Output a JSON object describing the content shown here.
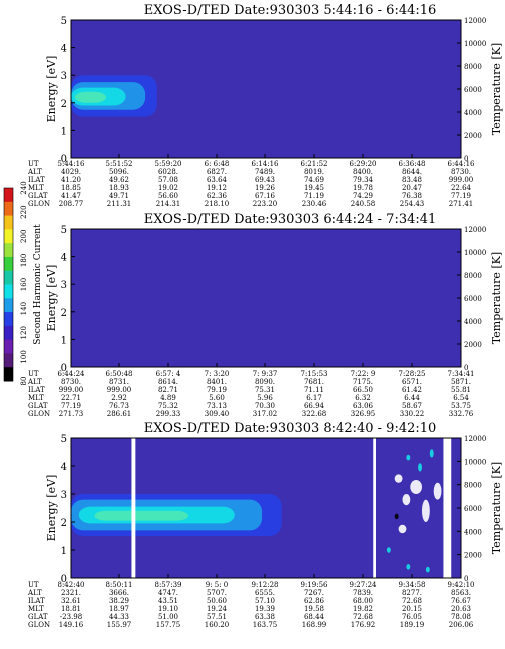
{
  "colorbar": {
    "label": "Second Harmonic Current",
    "ticks": [
      "240",
      "220",
      "200",
      "180",
      "160",
      "140",
      "120",
      "100",
      "80"
    ],
    "colors": [
      "#d4141b",
      "#ec6a18",
      "#f4c21a",
      "#f1f327",
      "#9ce23c",
      "#37d03c",
      "#1ac7a6",
      "#12e0e6",
      "#1f9ce9",
      "#2640e6",
      "#3a1fc4",
      "#6a1fb0",
      "#541b78",
      "#000000"
    ]
  },
  "chart_data": [
    {
      "type": "heatmap",
      "title": "EXOS-D/TED   Date:930303  5:44:16 - 6:44:16",
      "ylabel": "Energy [eV]",
      "y2label": "Temperature [K]",
      "ylim": [
        0,
        5
      ],
      "y2lim": [
        0,
        12000
      ],
      "yticks": [
        "0",
        "1",
        "2",
        "3",
        "4",
        "5"
      ],
      "y2ticks": [
        "0",
        "2000",
        "4000",
        "6000",
        "8000",
        "10000",
        "12000"
      ],
      "background_color": "#3d2fb0",
      "gaps": [],
      "blobs": [
        {
          "x0": 0.0,
          "x1": 0.22,
          "y0": 1.5,
          "y1": 3.0,
          "color": "#2640e6"
        },
        {
          "x0": 0.0,
          "x1": 0.19,
          "y0": 1.75,
          "y1": 2.75,
          "color": "#1f9ce9"
        },
        {
          "x0": 0.0,
          "x1": 0.14,
          "y0": 1.9,
          "y1": 2.55,
          "color": "#12e0e6"
        },
        {
          "x0": 0.01,
          "x1": 0.09,
          "y0": 2.0,
          "y1": 2.4,
          "color": "#4fe9b4"
        }
      ],
      "ephemeris": {
        "labels": [
          "UT",
          "ALT",
          "ILAT",
          "MLT",
          "GLAT",
          "GLON"
        ],
        "rows": [
          [
            "5:44:16",
            "5:51:52",
            "5:59:20",
            "6: 6:48",
            "6:14:16",
            "6:21:52",
            "6:29:20",
            "6:36:48",
            "6:44:16"
          ],
          [
            "4029.",
            "5096.",
            "6028.",
            "6827.",
            "7489.",
            "8019.",
            "8400.",
            "8644.",
            "8730."
          ],
          [
            "41.20",
            "49.62",
            "57.08",
            "63.64",
            "69.43",
            "74.69",
            "79.34",
            "83.48",
            "999.00"
          ],
          [
            "18.85",
            "18.93",
            "19.02",
            "19.12",
            "19.26",
            "19.45",
            "19.78",
            "20.47",
            "22.64"
          ],
          [
            "41.47",
            "49.71",
            "56.60",
            "62.36",
            "67.16",
            "71.19",
            "74.29",
            "76.38",
            "77.19"
          ],
          [
            "208.77",
            "211.31",
            "214.31",
            "218.10",
            "223.20",
            "230.46",
            "240.58",
            "254.43",
            "271.41"
          ]
        ]
      }
    },
    {
      "type": "heatmap",
      "title": "EXOS-D/TED   Date:930303  6:44:24 - 7:34:41",
      "ylabel": "Energy [eV]",
      "y2label": "Temperature [K]",
      "ylim": [
        0,
        5
      ],
      "y2lim": [
        0,
        12000
      ],
      "yticks": [
        "0",
        "1",
        "2",
        "3",
        "4",
        "5"
      ],
      "y2ticks": [
        "0",
        "2000",
        "4000",
        "6000",
        "8000",
        "10000",
        "12000"
      ],
      "background_color": "#3d2fb0",
      "gaps": [],
      "blobs": [],
      "ephemeris": {
        "labels": [
          "UT",
          "ALT",
          "ILAT",
          "MLT",
          "GLAT",
          "GLON"
        ],
        "rows": [
          [
            "6:44:24",
            "6:50:48",
            "6:57: 4",
            "7: 3:20",
            "7: 9:37",
            "7:15:53",
            "7:22: 9",
            "7:28:25",
            "7:34:41"
          ],
          [
            "8730.",
            "8731.",
            "8614.",
            "8401.",
            "8090.",
            "7681.",
            "7175.",
            "6571.",
            "5871."
          ],
          [
            "999.00",
            "999.00",
            "82.71",
            "79.19",
            "75.31",
            "71.11",
            "66.50",
            "61.42",
            "55.81"
          ],
          [
            "22.71",
            "2.92",
            "4.89",
            "5.60",
            "5.96",
            "6.17",
            "6.32",
            "6.44",
            "6.54"
          ],
          [
            "77.19",
            "76.73",
            "75.32",
            "73.13",
            "70.30",
            "66.94",
            "63.06",
            "58.67",
            "53.75"
          ],
          [
            "271.73",
            "286.61",
            "299.33",
            "309.40",
            "317.02",
            "322.68",
            "326.95",
            "330.22",
            "332.76"
          ]
        ]
      }
    },
    {
      "type": "heatmap",
      "title": "EXOS-D/TED   Date:930303  8:42:40 - 9:42:10",
      "ylabel": "Energy [eV]",
      "y2label": "Temperature [K]",
      "ylim": [
        0,
        5
      ],
      "y2lim": [
        0,
        12000
      ],
      "yticks": [
        "0",
        "1",
        "2",
        "3",
        "4",
        "5"
      ],
      "y2ticks": [
        "0",
        "2000",
        "4000",
        "6000",
        "8000",
        "10000",
        "12000"
      ],
      "background_color": "#3d2fb0",
      "gaps": [
        {
          "x0": 0.155,
          "x1": 0.165
        },
        {
          "x0": 0.775,
          "x1": 0.782
        },
        {
          "x0": 0.955,
          "x1": 0.975
        }
      ],
      "blobs": [
        {
          "x0": 0.0,
          "x1": 0.54,
          "y0": 1.5,
          "y1": 3.0,
          "color": "#2640e6"
        },
        {
          "x0": 0.0,
          "x1": 0.49,
          "y0": 1.7,
          "y1": 2.8,
          "color": "#1f9ce9"
        },
        {
          "x0": 0.02,
          "x1": 0.42,
          "y0": 1.95,
          "y1": 2.55,
          "color": "#12e0e6"
        },
        {
          "x0": 0.06,
          "x1": 0.3,
          "y0": 2.05,
          "y1": 2.4,
          "color": "#4fe9b4"
        },
        {
          "x0": 0.83,
          "x1": 0.85,
          "y0": 3.4,
          "y1": 3.7,
          "color": "#ffffff"
        },
        {
          "x0": 0.85,
          "x1": 0.87,
          "y0": 2.6,
          "y1": 3.0,
          "color": "#ffffff"
        },
        {
          "x0": 0.87,
          "x1": 0.9,
          "y0": 3.0,
          "y1": 3.5,
          "color": "#ffffff"
        },
        {
          "x0": 0.9,
          "x1": 0.92,
          "y0": 2.0,
          "y1": 2.8,
          "color": "#ffffff"
        },
        {
          "x0": 0.93,
          "x1": 0.95,
          "y0": 2.8,
          "y1": 3.4,
          "color": "#ffffff"
        },
        {
          "x0": 0.84,
          "x1": 0.86,
          "y0": 1.6,
          "y1": 1.9,
          "color": "#ffffff"
        },
        {
          "x0": 0.89,
          "x1": 0.9,
          "y0": 3.8,
          "y1": 4.1,
          "color": "#12e0e6"
        },
        {
          "x0": 0.86,
          "x1": 0.87,
          "y0": 4.2,
          "y1": 4.4,
          "color": "#12e0e6"
        },
        {
          "x0": 0.92,
          "x1": 0.93,
          "y0": 4.3,
          "y1": 4.6,
          "color": "#12e0e6"
        },
        {
          "x0": 0.81,
          "x1": 0.82,
          "y0": 0.9,
          "y1": 1.1,
          "color": "#12e0e6"
        },
        {
          "x0": 0.86,
          "x1": 0.87,
          "y0": 0.3,
          "y1": 0.5,
          "color": "#12e0e6"
        },
        {
          "x0": 0.91,
          "x1": 0.92,
          "y0": 0.2,
          "y1": 0.4,
          "color": "#12e0e6"
        },
        {
          "x0": 0.83,
          "x1": 0.84,
          "y0": 2.1,
          "y1": 2.3,
          "color": "#000000"
        }
      ],
      "ephemeris": {
        "labels": [
          "UT",
          "ALT",
          "ILAT",
          "MLT",
          "GLAT",
          "GLON"
        ],
        "rows": [
          [
            "8:42:40",
            "8:50:11",
            "8:57:39",
            "9: 5: 0",
            "9:12:28",
            "9:19:56",
            "9:27:24",
            "9:34:58",
            "9:42:10"
          ],
          [
            "2321.",
            "3666.",
            "4747.",
            "5707.",
            "6555.",
            "7267.",
            "7839.",
            "8277.",
            "8563."
          ],
          [
            "32.61",
            "38.29",
            "43.51",
            "50.60",
            "57.10",
            "62.86",
            "68.00",
            "72.68",
            "76.67"
          ],
          [
            "18.81",
            "18.97",
            "19.10",
            "19.24",
            "19.39",
            "19.58",
            "19.82",
            "20.15",
            "20.63"
          ],
          [
            "-23.98",
            "44.33",
            "51.00",
            "57.51",
            "63.38",
            "68.44",
            "72.68",
            "76.05",
            "78.08"
          ],
          [
            "149.16",
            "155.97",
            "157.75",
            "160.20",
            "163.75",
            "168.99",
            "176.92",
            "189.19",
            "206.06"
          ]
        ]
      }
    }
  ]
}
